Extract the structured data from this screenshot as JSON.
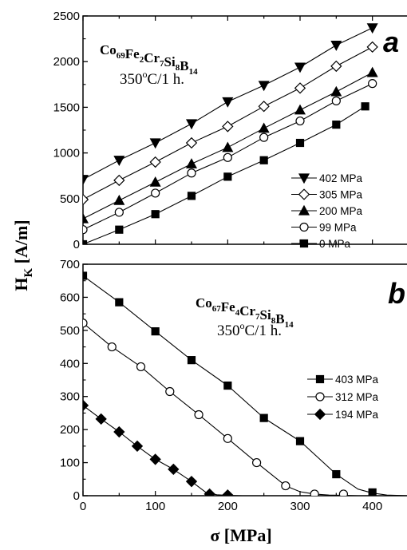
{
  "chart_data": [
    {
      "type": "line",
      "panel_label": "a",
      "composition": [
        {
          "t": "Co",
          "s": "69"
        },
        {
          "t": "Fe",
          "s": "2"
        },
        {
          "t": "Cr",
          "s": "7"
        },
        {
          "t": "Si",
          "s": "8"
        },
        {
          "t": "B",
          "s": "14"
        }
      ],
      "annealing": {
        "pre": "350",
        "sup": "o",
        "post": "C/1 h."
      },
      "xlim": [
        0,
        450
      ],
      "ylim": [
        0,
        2500
      ],
      "yticks": [
        0,
        500,
        1000,
        1500,
        2000,
        2500
      ],
      "ytick_labels": [
        "0",
        "500",
        "1000",
        "1500",
        "2000",
        "2500"
      ],
      "legend_position": "right",
      "series": [
        {
          "name": "402 MPa",
          "marker": "triangle-down-filled",
          "x": [
            0,
            50,
            100,
            150,
            200,
            250,
            300,
            350,
            400
          ],
          "y": [
            710,
            920,
            1110,
            1320,
            1560,
            1740,
            1940,
            2180,
            2370
          ]
        },
        {
          "name": "305 MPa",
          "marker": "diamond-open",
          "x": [
            0,
            50,
            100,
            150,
            200,
            250,
            300,
            350,
            400
          ],
          "y": [
            490,
            700,
            900,
            1110,
            1290,
            1510,
            1710,
            1950,
            2160
          ]
        },
        {
          "name": "200 MPa",
          "marker": "triangle-up-filled",
          "x": [
            0,
            50,
            100,
            150,
            200,
            250,
            300,
            350,
            400
          ],
          "y": [
            280,
            480,
            680,
            880,
            1060,
            1270,
            1470,
            1670,
            1880
          ]
        },
        {
          "name": "99 MPa",
          "marker": "circle-open",
          "x": [
            0,
            50,
            100,
            150,
            200,
            250,
            300,
            350,
            400
          ],
          "y": [
            160,
            350,
            560,
            780,
            950,
            1170,
            1350,
            1570,
            1760
          ]
        },
        {
          "name": "0 MPa",
          "marker": "square-filled",
          "x": [
            0,
            50,
            100,
            150,
            200,
            250,
            300,
            350,
            390
          ],
          "y": [
            0,
            160,
            330,
            530,
            740,
            920,
            1110,
            1310,
            1510
          ]
        }
      ]
    },
    {
      "type": "line",
      "panel_label": "b",
      "composition": [
        {
          "t": "Co",
          "s": "67"
        },
        {
          "t": "Fe",
          "s": "4"
        },
        {
          "t": "Cr",
          "s": "7"
        },
        {
          "t": "Si",
          "s": "8"
        },
        {
          "t": "B",
          "s": "14"
        }
      ],
      "annealing": {
        "pre": "350",
        "sup": "o",
        "post": "C/1 h."
      },
      "xlim": [
        0,
        450
      ],
      "ylim": [
        0,
        700
      ],
      "xticks": [
        0,
        100,
        200,
        300,
        400
      ],
      "xtick_labels": [
        "0",
        "100",
        "200",
        "300",
        "400"
      ],
      "yticks": [
        0,
        100,
        200,
        300,
        400,
        500,
        600,
        700
      ],
      "ytick_labels": [
        "0",
        "100",
        "200",
        "300",
        "400",
        "500",
        "600",
        "700"
      ],
      "legend_position": "right",
      "series": [
        {
          "name": "403 MPa",
          "marker": "square-filled",
          "x": [
            0,
            50,
            100,
            150,
            200,
            250,
            300,
            350,
            400
          ],
          "y": [
            665,
            585,
            497,
            410,
            333,
            235,
            165,
            65,
            10
          ],
          "curve_x": [
            0,
            50,
            100,
            150,
            200,
            250,
            300,
            350,
            380,
            400,
            420,
            450
          ],
          "curve_y": [
            665,
            585,
            497,
            410,
            333,
            235,
            165,
            65,
            20,
            8,
            2,
            0
          ]
        },
        {
          "name": "312 MPa",
          "marker": "circle-open",
          "x": [
            0,
            40,
            80,
            120,
            160,
            200,
            240,
            280,
            320,
            360
          ],
          "y": [
            522,
            450,
            390,
            315,
            245,
            173,
            100,
            30,
            5,
            5
          ],
          "curve_x": [
            0,
            40,
            80,
            120,
            160,
            200,
            240,
            280,
            300,
            320,
            340,
            360,
            380
          ],
          "curve_y": [
            522,
            450,
            390,
            315,
            245,
            173,
            100,
            30,
            12,
            5,
            2,
            1,
            0
          ]
        },
        {
          "name": "194 MPa",
          "marker": "diamond-filled",
          "x": [
            0,
            25,
            50,
            75,
            100,
            125,
            150,
            175,
            200
          ],
          "y": [
            273,
            232,
            193,
            150,
            110,
            80,
            43,
            5,
            2
          ],
          "curve_x": [
            0,
            25,
            50,
            75,
            100,
            125,
            150,
            170,
            185,
            200,
            220
          ],
          "curve_y": [
            273,
            232,
            193,
            150,
            110,
            80,
            43,
            10,
            3,
            1,
            0
          ]
        }
      ]
    }
  ],
  "axis_titles": {
    "x": "σ [MPa]",
    "y_main": "H",
    "y_sub": "K",
    "y_unit": " [A/m]"
  }
}
